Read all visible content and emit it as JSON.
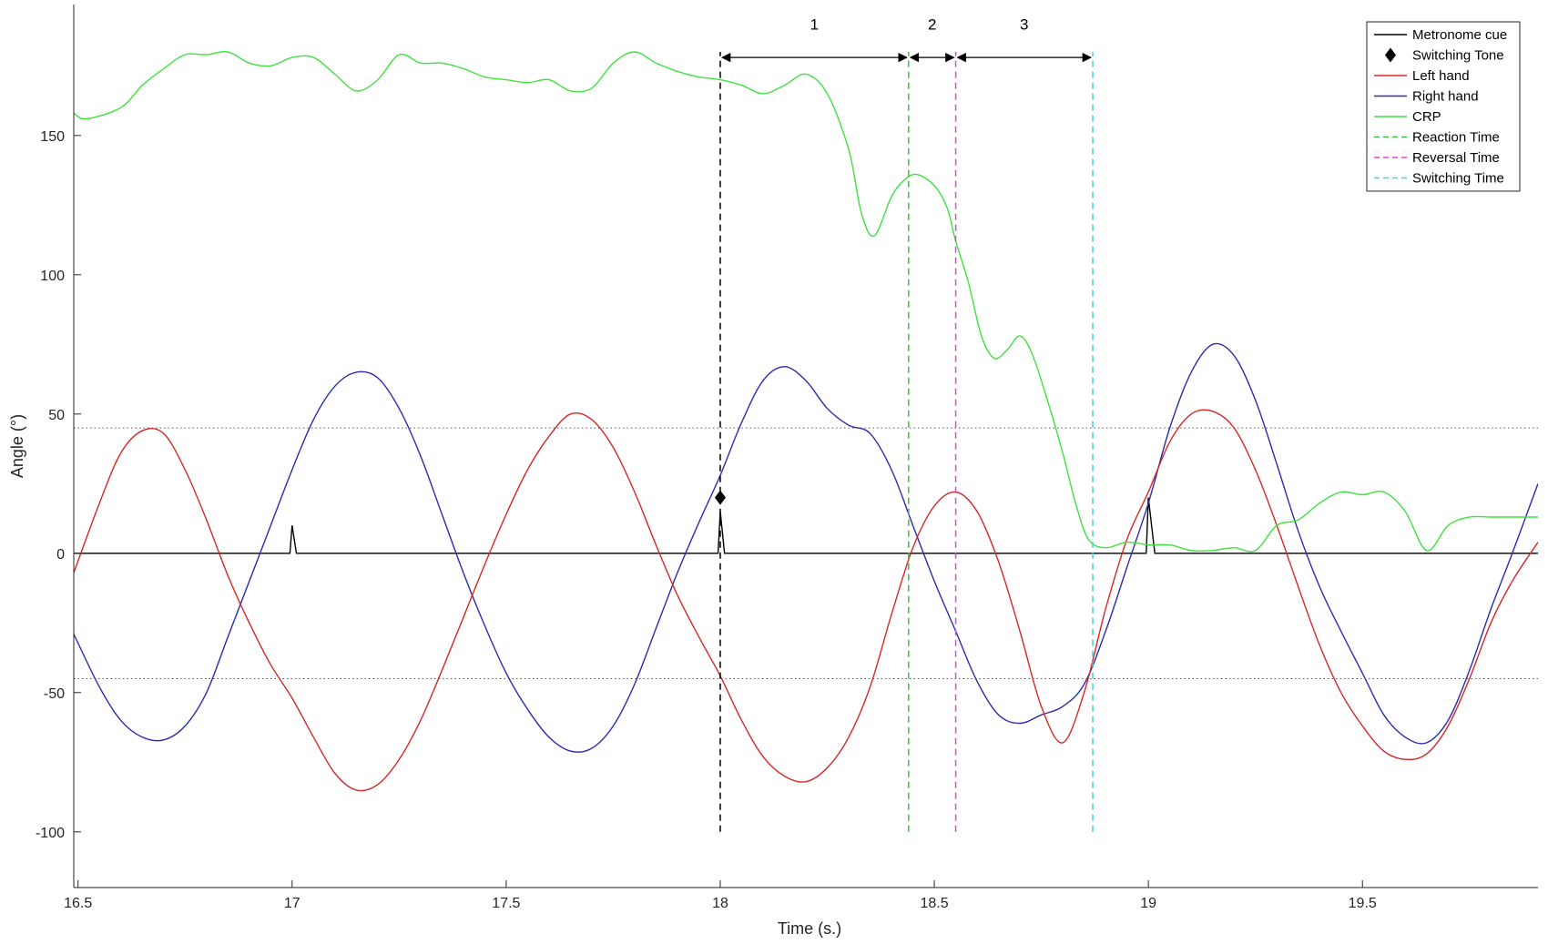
{
  "chart_data": {
    "type": "line",
    "title": "",
    "xlabel": "Time (s.)",
    "ylabel": "Angle (°)",
    "xlim": [
      16.49,
      19.91
    ],
    "ylim": [
      -120,
      197
    ],
    "xticks": [
      16.5,
      17,
      17.5,
      18,
      18.5,
      19,
      19.5
    ],
    "xtick_labels": [
      "16.5",
      "17",
      "17.5",
      "18",
      "18.5",
      "19",
      "19.5"
    ],
    "yticks": [
      -100,
      -50,
      0,
      50,
      100,
      150
    ],
    "ytick_labels": [
      "-100",
      "-50",
      "0",
      "50",
      "100",
      "150"
    ],
    "grid": false,
    "legend_position": "top-right",
    "reference_lines": [
      45,
      -45
    ],
    "series": [
      {
        "name": "Metronome cue",
        "color": "#000000",
        "style": "solid",
        "x": [
          16.49,
          16.995,
          17.0,
          17.01,
          17.995,
          18.0,
          18.01,
          18.995,
          19.0,
          19.015,
          19.91
        ],
        "y": [
          0,
          0,
          10,
          0,
          0,
          15,
          0,
          0,
          20,
          0,
          0
        ]
      },
      {
        "name": "Left hand",
        "color": "#d62728",
        "style": "solid",
        "x": [
          16.49,
          16.55,
          16.6,
          16.65,
          16.7,
          16.75,
          16.8,
          16.85,
          16.9,
          16.95,
          17.0,
          17.05,
          17.1,
          17.15,
          17.2,
          17.25,
          17.3,
          17.35,
          17.4,
          17.45,
          17.5,
          17.55,
          17.6,
          17.65,
          17.7,
          17.75,
          17.8,
          17.85,
          17.9,
          17.95,
          18.0,
          18.05,
          18.1,
          18.15,
          18.2,
          18.25,
          18.3,
          18.35,
          18.4,
          18.45,
          18.5,
          18.55,
          18.6,
          18.65,
          18.7,
          18.75,
          18.8,
          18.85,
          18.9,
          18.95,
          19.0,
          19.05,
          19.1,
          19.15,
          19.2,
          19.25,
          19.3,
          19.35,
          19.4,
          19.45,
          19.5,
          19.55,
          19.6,
          19.65,
          19.7,
          19.75,
          19.8,
          19.85,
          19.91
        ],
        "y": [
          -7,
          18,
          36,
          44,
          43,
          30,
          12,
          -8,
          -25,
          -40,
          -52,
          -66,
          -79,
          -85,
          -83,
          -74,
          -60,
          -42,
          -23,
          -4,
          14,
          30,
          42,
          50,
          48,
          38,
          22,
          3,
          -15,
          -30,
          -44,
          -60,
          -73,
          -80,
          -82,
          -77,
          -66,
          -48,
          -22,
          2,
          17,
          22,
          15,
          -3,
          -28,
          -55,
          -68,
          -50,
          -20,
          5,
          22,
          40,
          50,
          51,
          45,
          30,
          10,
          -12,
          -33,
          -50,
          -62,
          -71,
          -74,
          -72,
          -62,
          -45,
          -25,
          -10,
          4
        ]
      },
      {
        "name": "Right hand",
        "color": "#2b2bb0",
        "style": "solid",
        "x": [
          16.49,
          16.55,
          16.6,
          16.65,
          16.7,
          16.75,
          16.8,
          16.85,
          16.9,
          16.95,
          17.0,
          17.05,
          17.1,
          17.15,
          17.2,
          17.25,
          17.3,
          17.35,
          17.4,
          17.45,
          17.5,
          17.55,
          17.6,
          17.65,
          17.7,
          17.75,
          17.8,
          17.85,
          17.9,
          17.95,
          18.0,
          18.05,
          18.1,
          18.15,
          18.2,
          18.25,
          18.3,
          18.35,
          18.4,
          18.45,
          18.5,
          18.55,
          18.6,
          18.65,
          18.7,
          18.75,
          18.8,
          18.85,
          18.9,
          18.95,
          19.0,
          19.05,
          19.1,
          19.15,
          19.2,
          19.25,
          19.3,
          19.35,
          19.4,
          19.45,
          19.5,
          19.55,
          19.6,
          19.65,
          19.7,
          19.75,
          19.8,
          19.85,
          19.91
        ],
        "y": [
          -29,
          -48,
          -60,
          -66,
          -67,
          -62,
          -50,
          -30,
          -10,
          10,
          30,
          48,
          60,
          65,
          63,
          52,
          35,
          14,
          -7,
          -26,
          -43,
          -56,
          -66,
          -71,
          -70,
          -62,
          -47,
          -27,
          -7,
          11,
          28,
          47,
          62,
          67,
          62,
          52,
          46,
          43,
          30,
          10,
          -10,
          -28,
          -46,
          -58,
          -61,
          -58,
          -55,
          -47,
          -28,
          -5,
          18,
          45,
          65,
          75,
          71,
          55,
          32,
          8,
          -12,
          -28,
          -43,
          -58,
          -66,
          -68,
          -60,
          -42,
          -20,
          0,
          25
        ]
      },
      {
        "name": "CRP",
        "color": "#3fe23f",
        "style": "solid",
        "x": [
          16.49,
          16.52,
          16.6,
          16.65,
          16.7,
          16.75,
          16.8,
          16.85,
          16.9,
          16.95,
          17.0,
          17.05,
          17.1,
          17.15,
          17.2,
          17.25,
          17.3,
          17.35,
          17.4,
          17.45,
          17.5,
          17.55,
          17.6,
          17.65,
          17.7,
          17.75,
          17.8,
          17.85,
          17.9,
          17.95,
          18.0,
          18.05,
          18.1,
          18.15,
          18.2,
          18.25,
          18.3,
          18.33,
          18.36,
          18.4,
          18.43,
          18.46,
          18.5,
          18.53,
          18.55,
          18.58,
          18.61,
          18.64,
          18.67,
          18.7,
          18.73,
          18.77,
          18.8,
          18.83,
          18.86,
          18.9,
          18.95,
          19.0,
          19.05,
          19.1,
          19.15,
          19.2,
          19.25,
          19.3,
          19.35,
          19.4,
          19.45,
          19.5,
          19.55,
          19.6,
          19.65,
          19.7,
          19.75,
          19.8,
          19.85,
          19.91
        ],
        "y": [
          158,
          156,
          160,
          168,
          174,
          179,
          179,
          180,
          176,
          175,
          178,
          178,
          172,
          166,
          170,
          179,
          176,
          176,
          174,
          171,
          170,
          169,
          170,
          166,
          167,
          176,
          180,
          176,
          173,
          171,
          170,
          168,
          165,
          168,
          172,
          165,
          145,
          122,
          114,
          128,
          134,
          136,
          132,
          124,
          112,
          97,
          78,
          70,
          73,
          78,
          71,
          52,
          36,
          18,
          5,
          2,
          4,
          3,
          3,
          1,
          1,
          2,
          1,
          10,
          12,
          18,
          22,
          21,
          22,
          15,
          1,
          10,
          13,
          13,
          13,
          13
        ]
      },
      {
        "name": "Reaction Time",
        "color": "#3dbd3d",
        "style": "dashed",
        "x": [
          18.44,
          18.44
        ],
        "y": [
          -100,
          180
        ]
      },
      {
        "name": "Reversal Time",
        "color": "#e040e0",
        "style": "dashed",
        "x": [
          18.55,
          18.55
        ],
        "y": [
          -100,
          180
        ]
      },
      {
        "name": "Switching Time",
        "color": "#3fd4d4",
        "style": "dashed",
        "x": [
          18.87,
          18.87
        ],
        "y": [
          -100,
          180
        ]
      }
    ],
    "cue_line": {
      "x": 18.0,
      "y": [
        -100,
        180
      ],
      "color": "#000000",
      "style": "dashed"
    },
    "markers": [
      {
        "name": "Switching Tone",
        "symbol": "diamond",
        "x": 18.0,
        "y": 20,
        "color": "#000000"
      }
    ],
    "intervals": [
      {
        "label": "1",
        "x0": 18.0,
        "x1": 18.44,
        "y": 178,
        "label_y": 190
      },
      {
        "label": "2",
        "x0": 18.44,
        "x1": 18.55,
        "y": 178,
        "label_y": 190
      },
      {
        "label": "3",
        "x0": 18.55,
        "x1": 18.87,
        "y": 178,
        "label_y": 190
      }
    ],
    "legend": [
      {
        "label": "Metronome cue",
        "color": "#000000",
        "kind": "line",
        "style": "solid"
      },
      {
        "label": "Switching Tone",
        "color": "#000000",
        "kind": "diamond"
      },
      {
        "label": "Left hand",
        "color": "#d62728",
        "kind": "line",
        "style": "solid"
      },
      {
        "label": "Right hand",
        "color": "#2b2bb0",
        "kind": "line",
        "style": "solid"
      },
      {
        "label": "CRP",
        "color": "#3fe23f",
        "kind": "line",
        "style": "solid"
      },
      {
        "label": "Reaction Time",
        "color": "#3dbd3d",
        "kind": "line",
        "style": "dashed"
      },
      {
        "label": "Reversal Time",
        "color": "#e040e0",
        "kind": "line",
        "style": "dashed"
      },
      {
        "label": "Switching Time",
        "color": "#3fd4d4",
        "kind": "line",
        "style": "dashed"
      }
    ]
  }
}
